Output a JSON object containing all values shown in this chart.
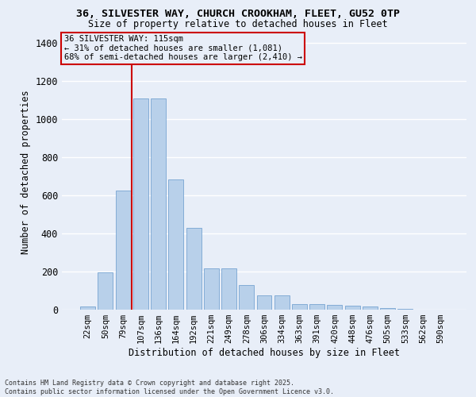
{
  "title1": "36, SILVESTER WAY, CHURCH CROOKHAM, FLEET, GU52 0TP",
  "title2": "Size of property relative to detached houses in Fleet",
  "xlabel": "Distribution of detached houses by size in Fleet",
  "ylabel": "Number of detached properties",
  "categories": [
    "22sqm",
    "50sqm",
    "79sqm",
    "107sqm",
    "136sqm",
    "164sqm",
    "192sqm",
    "221sqm",
    "249sqm",
    "278sqm",
    "306sqm",
    "334sqm",
    "363sqm",
    "391sqm",
    "420sqm",
    "448sqm",
    "476sqm",
    "505sqm",
    "533sqm",
    "562sqm",
    "590sqm"
  ],
  "values": [
    15,
    195,
    625,
    1110,
    1110,
    685,
    430,
    215,
    215,
    130,
    75,
    75,
    30,
    30,
    25,
    20,
    15,
    8,
    5,
    2,
    2
  ],
  "bar_color": "#b8d0ea",
  "bar_edge_color": "#6699cc",
  "bg_color": "#e8eef8",
  "grid_color": "#ffffff",
  "vline_color": "#cc0000",
  "vline_x_idx": 3,
  "annotation_title": "36 SILVESTER WAY: 115sqm",
  "annotation_line1": "← 31% of detached houses are smaller (1,081)",
  "annotation_line2": "68% of semi-detached houses are larger (2,410) →",
  "annotation_box_color": "#cc0000",
  "footer1": "Contains HM Land Registry data © Crown copyright and database right 2025.",
  "footer2": "Contains public sector information licensed under the Open Government Licence v3.0.",
  "ylim": [
    0,
    1450
  ],
  "yticks": [
    0,
    200,
    400,
    600,
    800,
    1000,
    1200,
    1400
  ]
}
